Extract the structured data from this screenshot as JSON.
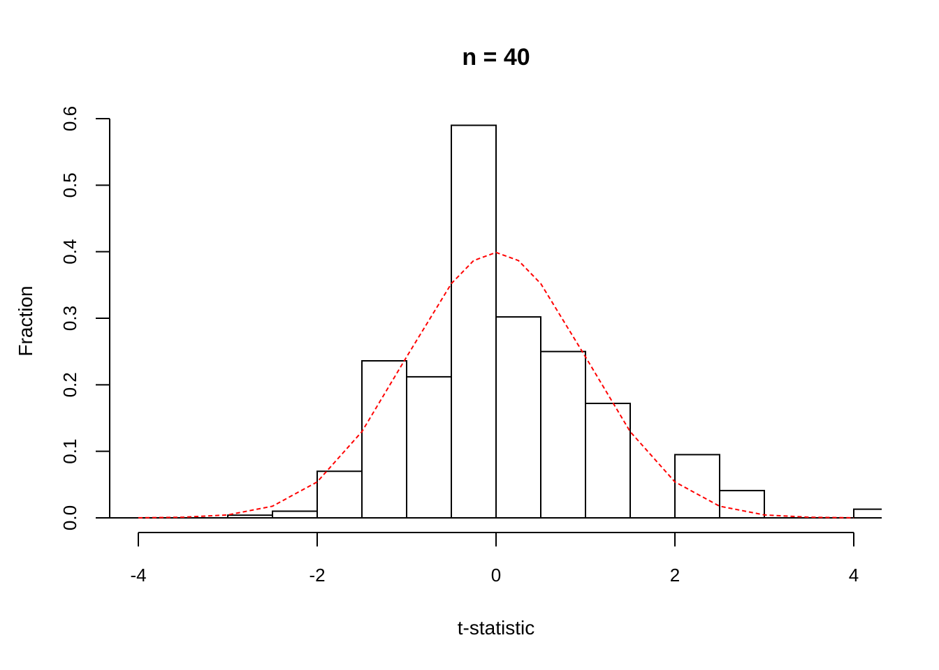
{
  "chart_data": {
    "type": "bar",
    "title": "n = 40",
    "xlabel": "t-statistic",
    "ylabel": "Fraction",
    "xlim": [
      -4.16,
      4.16
    ],
    "ylim": [
      0,
      0.6
    ],
    "x_ticks": [
      -4,
      -2,
      0,
      2,
      4
    ],
    "x_tick_labels": [
      "-4",
      "-2",
      "0",
      "2",
      "4"
    ],
    "y_ticks": [
      0.0,
      0.1,
      0.2,
      0.3,
      0.4,
      0.5,
      0.6
    ],
    "y_tick_labels": [
      "0.0",
      "0.1",
      "0.2",
      "0.3",
      "0.4",
      "0.5",
      "0.6"
    ],
    "grid": false,
    "bins": [
      {
        "x0": -3.0,
        "x1": -2.5,
        "value": 0.004
      },
      {
        "x0": -2.5,
        "x1": -2.0,
        "value": 0.01
      },
      {
        "x0": -2.0,
        "x1": -1.5,
        "value": 0.07
      },
      {
        "x0": -1.5,
        "x1": -1.0,
        "value": 0.236
      },
      {
        "x0": -1.0,
        "x1": -0.5,
        "value": 0.212
      },
      {
        "x0": -0.5,
        "x1": 0.0,
        "value": 0.59
      },
      {
        "x0": 0.0,
        "x1": 0.5,
        "value": 0.302
      },
      {
        "x0": 0.5,
        "x1": 1.0,
        "value": 0.25
      },
      {
        "x0": 1.0,
        "x1": 1.5,
        "value": 0.172
      },
      {
        "x0": 2.0,
        "x1": 2.5,
        "value": 0.095
      },
      {
        "x0": 2.5,
        "x1": 3.0,
        "value": 0.041
      },
      {
        "x0": 4.0,
        "x1": 4.5,
        "value": 0.013
      }
    ],
    "overlay": {
      "type": "line",
      "style": "dashed",
      "color": "#ff0000",
      "x": [
        -4.0,
        -3.5,
        -3.0,
        -2.5,
        -2.0,
        -1.5,
        -1.0,
        -0.5,
        -0.25,
        0.0,
        0.25,
        0.5,
        1.0,
        1.5,
        2.0,
        2.5,
        3.0,
        3.5,
        4.0
      ],
      "y": [
        0.0001,
        0.0009,
        0.0044,
        0.0175,
        0.054,
        0.1295,
        0.242,
        0.352,
        0.3867,
        0.3989,
        0.3867,
        0.352,
        0.242,
        0.1295,
        0.054,
        0.0175,
        0.0044,
        0.0009,
        0.0001
      ]
    }
  }
}
